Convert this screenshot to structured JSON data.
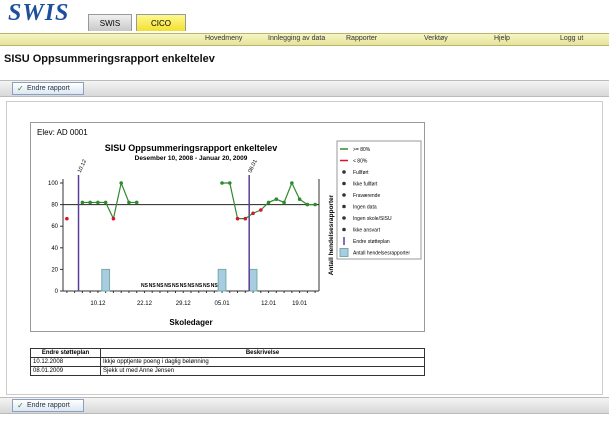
{
  "header": {
    "logo": "SWIS",
    "tabs": [
      "SWIS",
      "CICO"
    ],
    "nav": [
      "Hovedmeny",
      "Innlegging av data",
      "Rapporter",
      "Verktøy",
      "Hjelp",
      "Logg ut"
    ]
  },
  "page_title": "SISU Oppsummeringsrapport enkeltelev",
  "toolbar_button": "Endre rapport",
  "chart_data": {
    "type": "line",
    "student": "Elev: AD 0001",
    "title": "SISU Oppsummeringsrapport enkeltelev",
    "subtitle": "Desember 10, 2008 - Januar 20, 2009",
    "x_label": "Skoledager",
    "y2_label": "Antall hendelsesrapporter",
    "categories": [
      null,
      null,
      null,
      null,
      "10.12",
      null,
      null,
      null,
      null,
      null,
      "22.12",
      null,
      null,
      null,
      null,
      "29.12",
      null,
      null,
      null,
      null,
      "05.01",
      null,
      null,
      null,
      null,
      null,
      "12.01",
      null,
      null,
      null,
      "19.01",
      null,
      null
    ],
    "values": [
      67,
      null,
      82,
      82,
      82,
      82,
      67,
      100,
      82,
      82,
      null,
      null,
      null,
      null,
      null,
      null,
      null,
      null,
      null,
      null,
      100,
      100,
      67,
      67,
      72,
      75,
      82,
      85,
      82,
      100,
      85,
      80,
      80
    ],
    "color": "#2e8b2e",
    "below_color": "#e0102a",
    "goal": 80,
    "bars": {
      "values": [
        null,
        null,
        null,
        null,
        null,
        1,
        null,
        null,
        null,
        null,
        null,
        null,
        null,
        null,
        null,
        null,
        null,
        null,
        null,
        null,
        1,
        null,
        null,
        null,
        1,
        null,
        null,
        null,
        null,
        null,
        null,
        null,
        null
      ],
      "color": "#a8cce0",
      "axis": "y2"
    },
    "ylim": [
      0,
      100
    ],
    "yticks": [
      0,
      20,
      40,
      60,
      80,
      100
    ],
    "y2lim": [
      0,
      5
    ],
    "phase_lines": [
      {
        "x": 1.5,
        "label": "10.12"
      },
      {
        "x": 23.5,
        "label": "08.01"
      }
    ],
    "phase_color": "#5a3e9a",
    "ns": {
      "label": "NS",
      "x": [
        10,
        11,
        12,
        13,
        14,
        15,
        16,
        17,
        18,
        19
      ]
    },
    "legend": [
      ">= 80%",
      "< 80%",
      "Fullført",
      "Ikke fullført",
      "Fraværende",
      "Ingen data",
      "Ingen skole/SISU",
      "Ikke ansvart",
      "Endre støtteplan",
      "Antall hendelsesrapporter"
    ]
  },
  "table": {
    "headers": [
      "Endre støtteplan",
      "Beskrivelse"
    ],
    "rows": [
      [
        "10.12.2008",
        "Ikkje opptjente poeng i daglig belønning"
      ],
      [
        "08.01.2009",
        "Sjekk ut med Anne Jensen"
      ]
    ]
  },
  "bottom_button": "Endre rapport"
}
